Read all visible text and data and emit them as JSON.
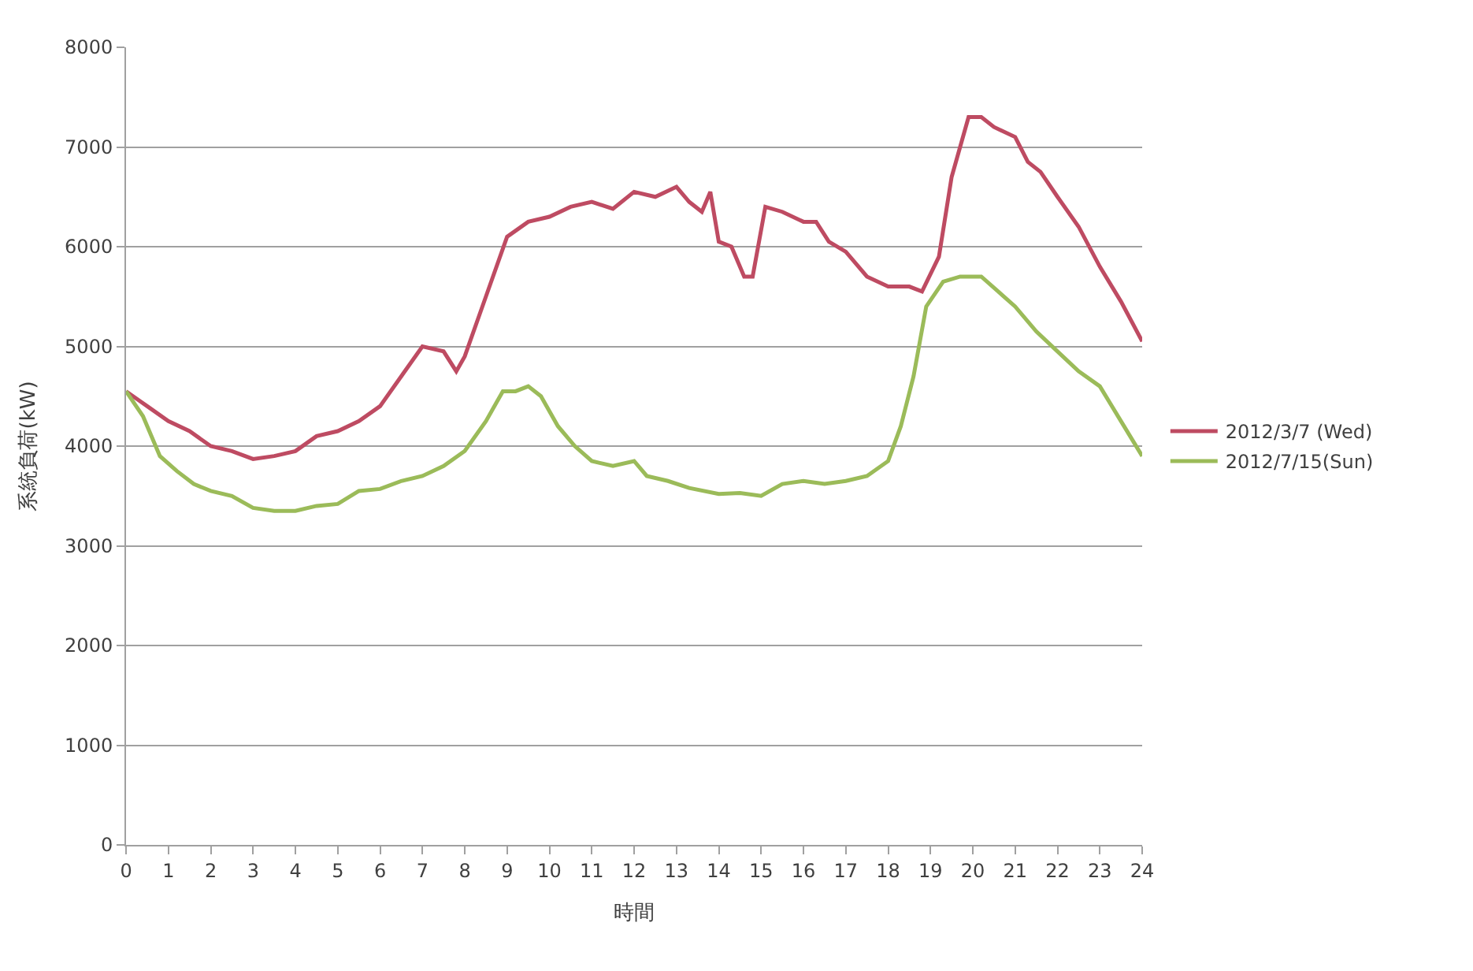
{
  "chart_data": {
    "type": "line",
    "xlabel": "時間",
    "ylabel": "系統負荷(kW)",
    "xlim": [
      0,
      24
    ],
    "xticks": [
      0,
      1,
      2,
      3,
      4,
      5,
      6,
      7,
      8,
      9,
      10,
      11,
      12,
      13,
      14,
      15,
      16,
      17,
      18,
      19,
      20,
      21,
      22,
      23,
      24
    ],
    "ylim": [
      0,
      8000
    ],
    "yticks": [
      0,
      1000,
      2000,
      3000,
      4000,
      5000,
      6000,
      7000,
      8000
    ],
    "grid": "y",
    "legend": "right",
    "marker": "none",
    "line_style": "solid",
    "series": [
      {
        "name": "2012/3/7 (Wed)",
        "color": "#be4b62",
        "x": [
          0,
          0.5,
          1,
          1.5,
          2,
          2.5,
          3,
          3.5,
          4,
          4.5,
          5,
          5.5,
          6,
          6.5,
          7,
          7.5,
          7.8,
          8,
          8.5,
          9,
          9.5,
          10,
          10.5,
          11,
          11.5,
          12,
          12.5,
          13,
          13.3,
          13.6,
          13.8,
          14,
          14.3,
          14.6,
          14.8,
          15.1,
          15.5,
          16,
          16.3,
          16.6,
          17,
          17.5,
          18,
          18.5,
          18.8,
          19.2,
          19.5,
          19.9,
          20.2,
          20.5,
          21,
          21.3,
          21.6,
          22,
          22.5,
          23,
          23.5,
          24
        ],
        "values": [
          4550,
          4400,
          4250,
          4150,
          4000,
          3950,
          3870,
          3900,
          3950,
          4100,
          4150,
          4250,
          4400,
          4700,
          5000,
          4950,
          4750,
          4900,
          5500,
          6100,
          6250,
          6300,
          6400,
          6450,
          6380,
          6550,
          6500,
          6600,
          6450,
          6350,
          6550,
          6050,
          6000,
          5700,
          5700,
          6400,
          6350,
          6250,
          6250,
          6050,
          5950,
          5700,
          5600,
          5600,
          5550,
          5900,
          6700,
          7300,
          7300,
          7200,
          7100,
          6850,
          6750,
          6500,
          6200,
          5800,
          5450,
          5050
        ]
      },
      {
        "name": "2012/7/15(Sun)",
        "color": "#9bbb59",
        "x": [
          0,
          0.4,
          0.8,
          1.2,
          1.6,
          2,
          2.5,
          3,
          3.5,
          4,
          4.5,
          5,
          5.5,
          6,
          6.5,
          7,
          7.5,
          8,
          8.5,
          8.9,
          9.2,
          9.5,
          9.8,
          10.2,
          10.6,
          11,
          11.5,
          12,
          12.3,
          12.8,
          13.3,
          14,
          14.5,
          15,
          15.5,
          16,
          16.5,
          17,
          17.5,
          18,
          18.3,
          18.6,
          18.9,
          19.3,
          19.7,
          20.2,
          20.6,
          21,
          21.5,
          22,
          22.5,
          23,
          23.5,
          24
        ],
        "values": [
          4550,
          4300,
          3900,
          3750,
          3620,
          3550,
          3500,
          3380,
          3350,
          3350,
          3400,
          3420,
          3550,
          3570,
          3650,
          3700,
          3800,
          3950,
          4250,
          4550,
          4550,
          4600,
          4500,
          4200,
          4000,
          3850,
          3800,
          3850,
          3700,
          3650,
          3580,
          3520,
          3530,
          3500,
          3620,
          3650,
          3620,
          3650,
          3700,
          3850,
          4200,
          4700,
          5400,
          5650,
          5700,
          5700,
          5550,
          5400,
          5150,
          4950,
          4750,
          4600,
          4250,
          3900
        ]
      }
    ]
  }
}
